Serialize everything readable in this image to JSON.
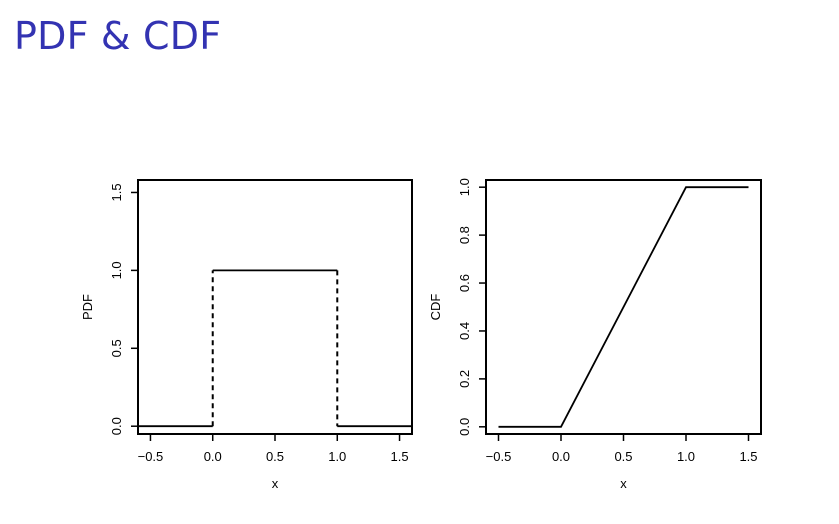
{
  "slide": {
    "title": "PDF & CDF"
  },
  "colors": {
    "title": "#3333b2",
    "line": "#000000"
  },
  "chart_data": [
    {
      "type": "line",
      "title": "",
      "xlabel": "x",
      "ylabel": "PDF",
      "xlim": [
        -0.6,
        1.6
      ],
      "ylim": [
        -0.05,
        1.58
      ],
      "xticks": [
        -0.5,
        0.0,
        0.5,
        1.0,
        1.5
      ],
      "xtick_labels": [
        "−0.5",
        "0.0",
        "0.5",
        "1.0",
        "1.5"
      ],
      "yticks": [
        0.0,
        0.5,
        1.0,
        1.5
      ],
      "ytick_labels": [
        "0.0",
        "0.5",
        "1.0",
        "1.5"
      ],
      "segments": [
        {
          "x": [
            -0.6,
            0.0
          ],
          "y": [
            0,
            0
          ],
          "style": "solid"
        },
        {
          "x": [
            0.0,
            0.0
          ],
          "y": [
            0,
            1
          ],
          "style": "dashed"
        },
        {
          "x": [
            0.0,
            1.0
          ],
          "y": [
            1,
            1
          ],
          "style": "solid"
        },
        {
          "x": [
            1.0,
            1.0
          ],
          "y": [
            1,
            0
          ],
          "style": "dashed"
        },
        {
          "x": [
            1.0,
            1.6
          ],
          "y": [
            0,
            0
          ],
          "style": "solid"
        }
      ],
      "grid": false,
      "legend": "none"
    },
    {
      "type": "line",
      "title": "",
      "xlabel": "x",
      "ylabel": "CDF",
      "xlim": [
        -0.6,
        1.6
      ],
      "ylim": [
        -0.03,
        1.03
      ],
      "xticks": [
        -0.5,
        0.0,
        0.5,
        1.0,
        1.5
      ],
      "xtick_labels": [
        "−0.5",
        "0.0",
        "0.5",
        "1.0",
        "1.5"
      ],
      "yticks": [
        0.0,
        0.2,
        0.4,
        0.6,
        0.8,
        1.0
      ],
      "ytick_labels": [
        "0.0",
        "0.2",
        "0.4",
        "0.6",
        "0.8",
        "1.0"
      ],
      "segments": [
        {
          "x": [
            -0.5,
            0.0,
            1.0,
            1.5
          ],
          "y": [
            0,
            0,
            1,
            1
          ],
          "style": "solid"
        }
      ],
      "grid": false,
      "legend": "none"
    }
  ]
}
